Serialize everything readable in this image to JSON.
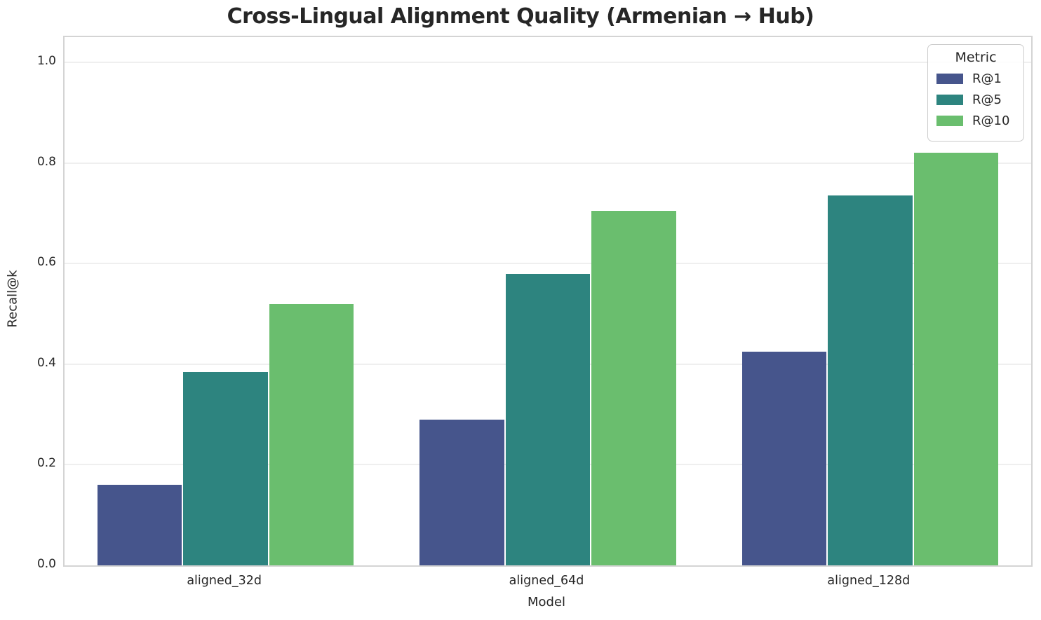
{
  "chart_data": {
    "type": "bar",
    "title": "Cross-Lingual Alignment Quality (Armenian → Hub)",
    "xlabel": "Model",
    "ylabel": "Recall@k",
    "categories": [
      "aligned_32d",
      "aligned_64d",
      "aligned_128d"
    ],
    "series": [
      {
        "name": "R@1",
        "color": "#46558C",
        "values": [
          0.16,
          0.29,
          0.425
        ]
      },
      {
        "name": "R@5",
        "color": "#2D847F",
        "values": [
          0.385,
          0.58,
          0.735
        ]
      },
      {
        "name": "R@10",
        "color": "#6ABE6E",
        "values": [
          0.52,
          0.705,
          0.82
        ]
      }
    ],
    "legend": {
      "title": "Metric",
      "position": "upper-right"
    },
    "ylim": [
      0,
      1.05
    ],
    "yticks": [
      0.0,
      0.2,
      0.4,
      0.6,
      0.8,
      1.0
    ],
    "ytick_labels": [
      "0.0",
      "0.2",
      "0.4",
      "0.6",
      "0.8",
      "1.0"
    ],
    "grid": "horizontal",
    "style": {
      "grid_color": "#efefef",
      "spine_color": "#d4d4d4",
      "text_color": "#262626",
      "background": "#ffffff",
      "group_width_fraction": 0.8
    }
  }
}
